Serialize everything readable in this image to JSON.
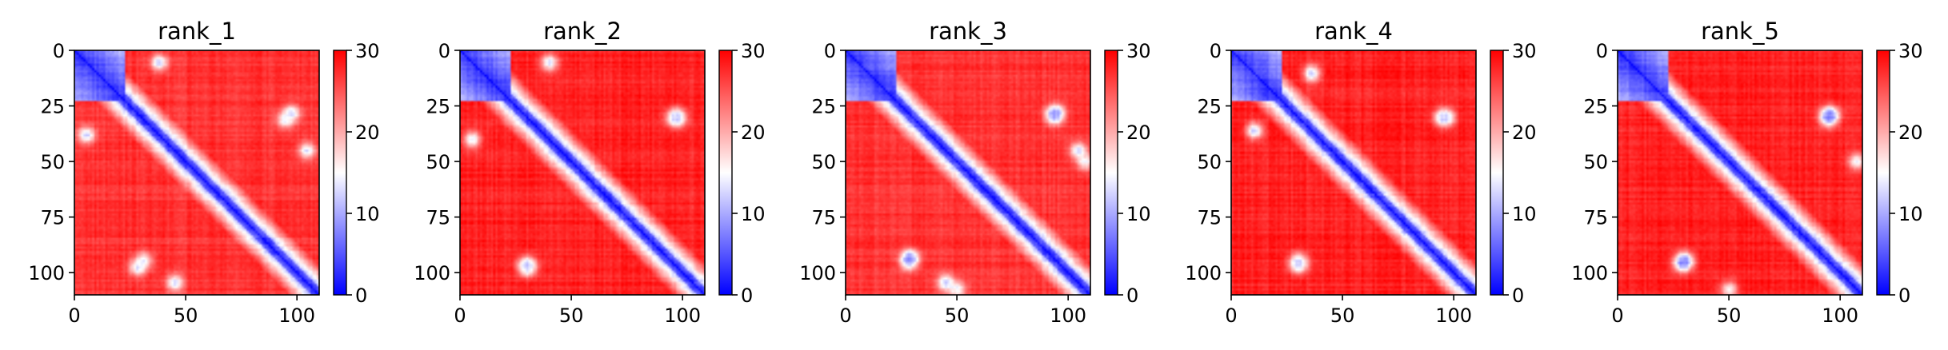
{
  "colors": {
    "low": "#0000ff",
    "mid": "#ffffff",
    "high": "#ff0000",
    "axis": "#000000",
    "background": "#ffffff"
  },
  "chart_data": [
    {
      "type": "heatmap",
      "title": "rank_1",
      "matrix_size": 111,
      "colormap": "bwr",
      "xlim": [
        0,
        110
      ],
      "ylim": [
        110,
        0
      ],
      "xticks": [
        "0",
        "50",
        "100"
      ],
      "yticks": [
        "0",
        "25",
        "50",
        "75",
        "100"
      ],
      "colorbar": {
        "range": [
          0,
          30
        ],
        "ticks": [
          "0",
          "10",
          "20",
          "30"
        ]
      },
      "pattern": {
        "diagonal_value": 2,
        "off_diagonal_value": 27,
        "low_region": {
          "start": 0,
          "end": 22
        },
        "spots": [
          {
            "i": 31,
            "j": 95,
            "value": 14
          },
          {
            "i": 98,
            "j": 28,
            "value": 13
          },
          {
            "i": 5,
            "j": 38,
            "value": 12
          },
          {
            "i": 105,
            "j": 45,
            "value": 13
          }
        ]
      }
    },
    {
      "type": "heatmap",
      "title": "rank_2",
      "matrix_size": 111,
      "colormap": "bwr",
      "xlim": [
        0,
        110
      ],
      "ylim": [
        110,
        0
      ],
      "xticks": [
        "0",
        "50",
        "100"
      ],
      "yticks": [
        "0",
        "25",
        "50",
        "75",
        "100"
      ],
      "colorbar": {
        "range": [
          0,
          30
        ],
        "ticks": [
          "0",
          "10",
          "20",
          "30"
        ]
      },
      "pattern": {
        "diagonal_value": 2,
        "off_diagonal_value": 28,
        "low_region": {
          "start": 0,
          "end": 22
        },
        "spots": [
          {
            "i": 30,
            "j": 97,
            "value": 13
          },
          {
            "i": 98,
            "j": 30,
            "value": 12
          },
          {
            "i": 5,
            "j": 40,
            "value": 13
          }
        ]
      }
    },
    {
      "type": "heatmap",
      "title": "rank_3",
      "matrix_size": 111,
      "colormap": "bwr",
      "xlim": [
        0,
        110
      ],
      "ylim": [
        110,
        0
      ],
      "xticks": [
        "0",
        "50",
        "100"
      ],
      "yticks": [
        "0",
        "25",
        "50",
        "75",
        "100"
      ],
      "colorbar": {
        "range": [
          0,
          30
        ],
        "ticks": [
          "0",
          "10",
          "20",
          "30"
        ]
      },
      "pattern": {
        "diagonal_value": 2,
        "off_diagonal_value": 27,
        "low_region": {
          "start": 0,
          "end": 22
        },
        "spots": [
          {
            "i": 28,
            "j": 95,
            "value": 12
          },
          {
            "i": 94,
            "j": 29,
            "value": 9
          },
          {
            "i": 50,
            "j": 108,
            "value": 14
          },
          {
            "i": 105,
            "j": 45,
            "value": 12
          }
        ]
      }
    },
    {
      "type": "heatmap",
      "title": "rank_4",
      "matrix_size": 111,
      "colormap": "bwr",
      "xlim": [
        0,
        110
      ],
      "ylim": [
        110,
        0
      ],
      "xticks": [
        "0",
        "50",
        "100"
      ],
      "yticks": [
        "0",
        "25",
        "50",
        "75",
        "100"
      ],
      "colorbar": {
        "range": [
          0,
          30
        ],
        "ticks": [
          "0",
          "10",
          "20",
          "30"
        ]
      },
      "pattern": {
        "diagonal_value": 2,
        "off_diagonal_value": 28,
        "low_region": {
          "start": 0,
          "end": 22
        },
        "spots": [
          {
            "i": 30,
            "j": 95,
            "value": 14
          },
          {
            "i": 97,
            "j": 30,
            "value": 12
          },
          {
            "i": 10,
            "j": 36,
            "value": 11
          }
        ]
      }
    },
    {
      "type": "heatmap",
      "title": "rank_5",
      "matrix_size": 111,
      "colormap": "bwr",
      "xlim": [
        0,
        110
      ],
      "ylim": [
        110,
        0
      ],
      "xticks": [
        "0",
        "50",
        "100"
      ],
      "yticks": [
        "0",
        "25",
        "50",
        "75",
        "100"
      ],
      "colorbar": {
        "range": [
          0,
          30
        ],
        "ticks": [
          "0",
          "10",
          "20",
          "30"
        ]
      },
      "pattern": {
        "diagonal_value": 2,
        "off_diagonal_value": 28,
        "low_region": {
          "start": 0,
          "end": 22
        },
        "spots": [
          {
            "i": 30,
            "j": 95,
            "value": 9
          },
          {
            "i": 96,
            "j": 29,
            "value": 8
          },
          {
            "i": 50,
            "j": 108,
            "value": 15
          }
        ]
      }
    }
  ]
}
